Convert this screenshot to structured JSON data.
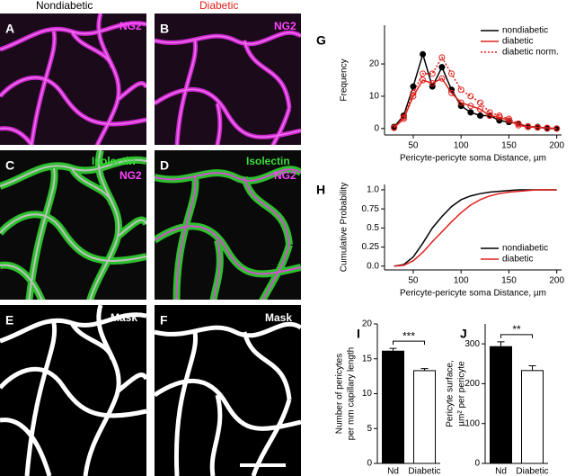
{
  "images": {
    "headers": [
      "Nondiabetic",
      "Diabetic"
    ],
    "panels": [
      {
        "letter": "A",
        "labels": [
          "NG2"
        ]
      },
      {
        "letter": "B",
        "labels": [
          "NG2"
        ]
      },
      {
        "letter": "C",
        "labels": [
          "Isolectin",
          "NG2"
        ]
      },
      {
        "letter": "D",
        "labels": [
          "Isolectin",
          "NG2"
        ]
      },
      {
        "letter": "E",
        "labels": [
          "Mask"
        ]
      },
      {
        "letter": "F",
        "labels": [
          "Mask"
        ]
      }
    ]
  },
  "chart_data": [
    {
      "type": "line",
      "panel": "G",
      "x_label": "Pericyte-pericyte soma Distance, µm",
      "y_label": [
        "Frequency"
      ],
      "x": [
        30,
        40,
        50,
        60,
        70,
        80,
        90,
        100,
        110,
        120,
        130,
        140,
        150,
        160,
        170,
        180,
        190,
        200
      ],
      "xlim": [
        20,
        205
      ],
      "xticks": [
        50,
        100,
        150,
        200
      ],
      "ylim": [
        -2,
        32
      ],
      "yticks": [
        0,
        10,
        20
      ],
      "grid": false,
      "legend": "upper right",
      "series": [
        {
          "name": "nondiabetic",
          "color": "#000000",
          "line_style": "solid",
          "marker": "filled",
          "values": [
            0.5,
            4,
            13,
            23,
            13,
            19,
            12,
            7,
            5,
            4,
            4,
            2.5,
            2,
            1.5,
            0.5,
            0.5,
            0,
            0
          ]
        },
        {
          "name": "diabetic",
          "color": "#e0201b",
          "line_style": "solid",
          "marker": "open",
          "values": [
            0.2,
            3,
            10,
            15,
            14,
            15.5,
            11,
            8,
            7,
            6,
            4,
            3.5,
            2.5,
            1,
            0.5,
            0.3,
            0.2,
            0
          ]
        },
        {
          "name": "diabetic norm.",
          "color": "#e0201b",
          "line_style": "dotted",
          "marker": "open",
          "values": [
            0.3,
            3.5,
            11,
            17,
            17,
            22,
            17,
            12,
            10,
            8,
            5,
            4,
            3,
            1.5,
            0.7,
            0.4,
            0.2,
            0
          ]
        }
      ]
    },
    {
      "type": "line",
      "panel": "H",
      "x_label": "Pericyte-pericyte soma Distance, µm",
      "y_label": [
        "Cumulative Probability"
      ],
      "x": [
        30,
        40,
        50,
        60,
        70,
        80,
        90,
        100,
        110,
        120,
        130,
        140,
        150,
        160,
        170,
        180,
        190,
        200
      ],
      "xlim": [
        20,
        205
      ],
      "xticks": [
        50,
        100,
        150,
        200
      ],
      "ylim": [
        -0.05,
        1.07
      ],
      "yticks": [
        {
          "value": 0,
          "label": "0.0"
        },
        0.25,
        0.5,
        0.75,
        {
          "value": 1,
          "label": "1.0"
        }
      ],
      "grid": false,
      "legend": "lower right",
      "series": [
        {
          "name": "nondiabetic",
          "color": "#000000",
          "line_style": "solid",
          "marker": "none",
          "values": [
            0,
            0.02,
            0.12,
            0.3,
            0.5,
            0.65,
            0.78,
            0.87,
            0.92,
            0.95,
            0.97,
            0.98,
            0.99,
            1,
            1,
            1,
            1,
            1
          ]
        },
        {
          "name": "diabetic",
          "color": "#e0201b",
          "line_style": "solid",
          "marker": "none",
          "values": [
            0,
            0.01,
            0.07,
            0.18,
            0.32,
            0.45,
            0.58,
            0.7,
            0.8,
            0.87,
            0.92,
            0.95,
            0.97,
            0.98,
            0.99,
            1,
            1,
            1
          ]
        }
      ]
    },
    {
      "type": "bar",
      "panel": "I",
      "y_label": [
        "Number of pericytes",
        "per mm capillary length"
      ],
      "categories": [
        "Nd",
        "Diabetic"
      ],
      "values": [
        16.1,
        13.3
      ],
      "errors": [
        0.4,
        0.3
      ],
      "colors": [
        "#000000",
        "#ffffff"
      ],
      "ylim": [
        0,
        20
      ],
      "yticks": [
        0,
        5,
        10,
        15,
        20
      ],
      "grid": false,
      "annotation": "***"
    },
    {
      "type": "bar",
      "panel": "J",
      "y_label": [
        "Pericyte surface,",
        "µm² per pericyte"
      ],
      "categories": [
        "Nd",
        "Diabetic"
      ],
      "values": [
        293,
        233
      ],
      "errors": [
        12,
        12
      ],
      "colors": [
        "#000000",
        "#ffffff"
      ],
      "ylim": [
        0,
        350
      ],
      "yticks": [
        0,
        100,
        200,
        300
      ],
      "grid": false,
      "annotation": "**"
    }
  ]
}
